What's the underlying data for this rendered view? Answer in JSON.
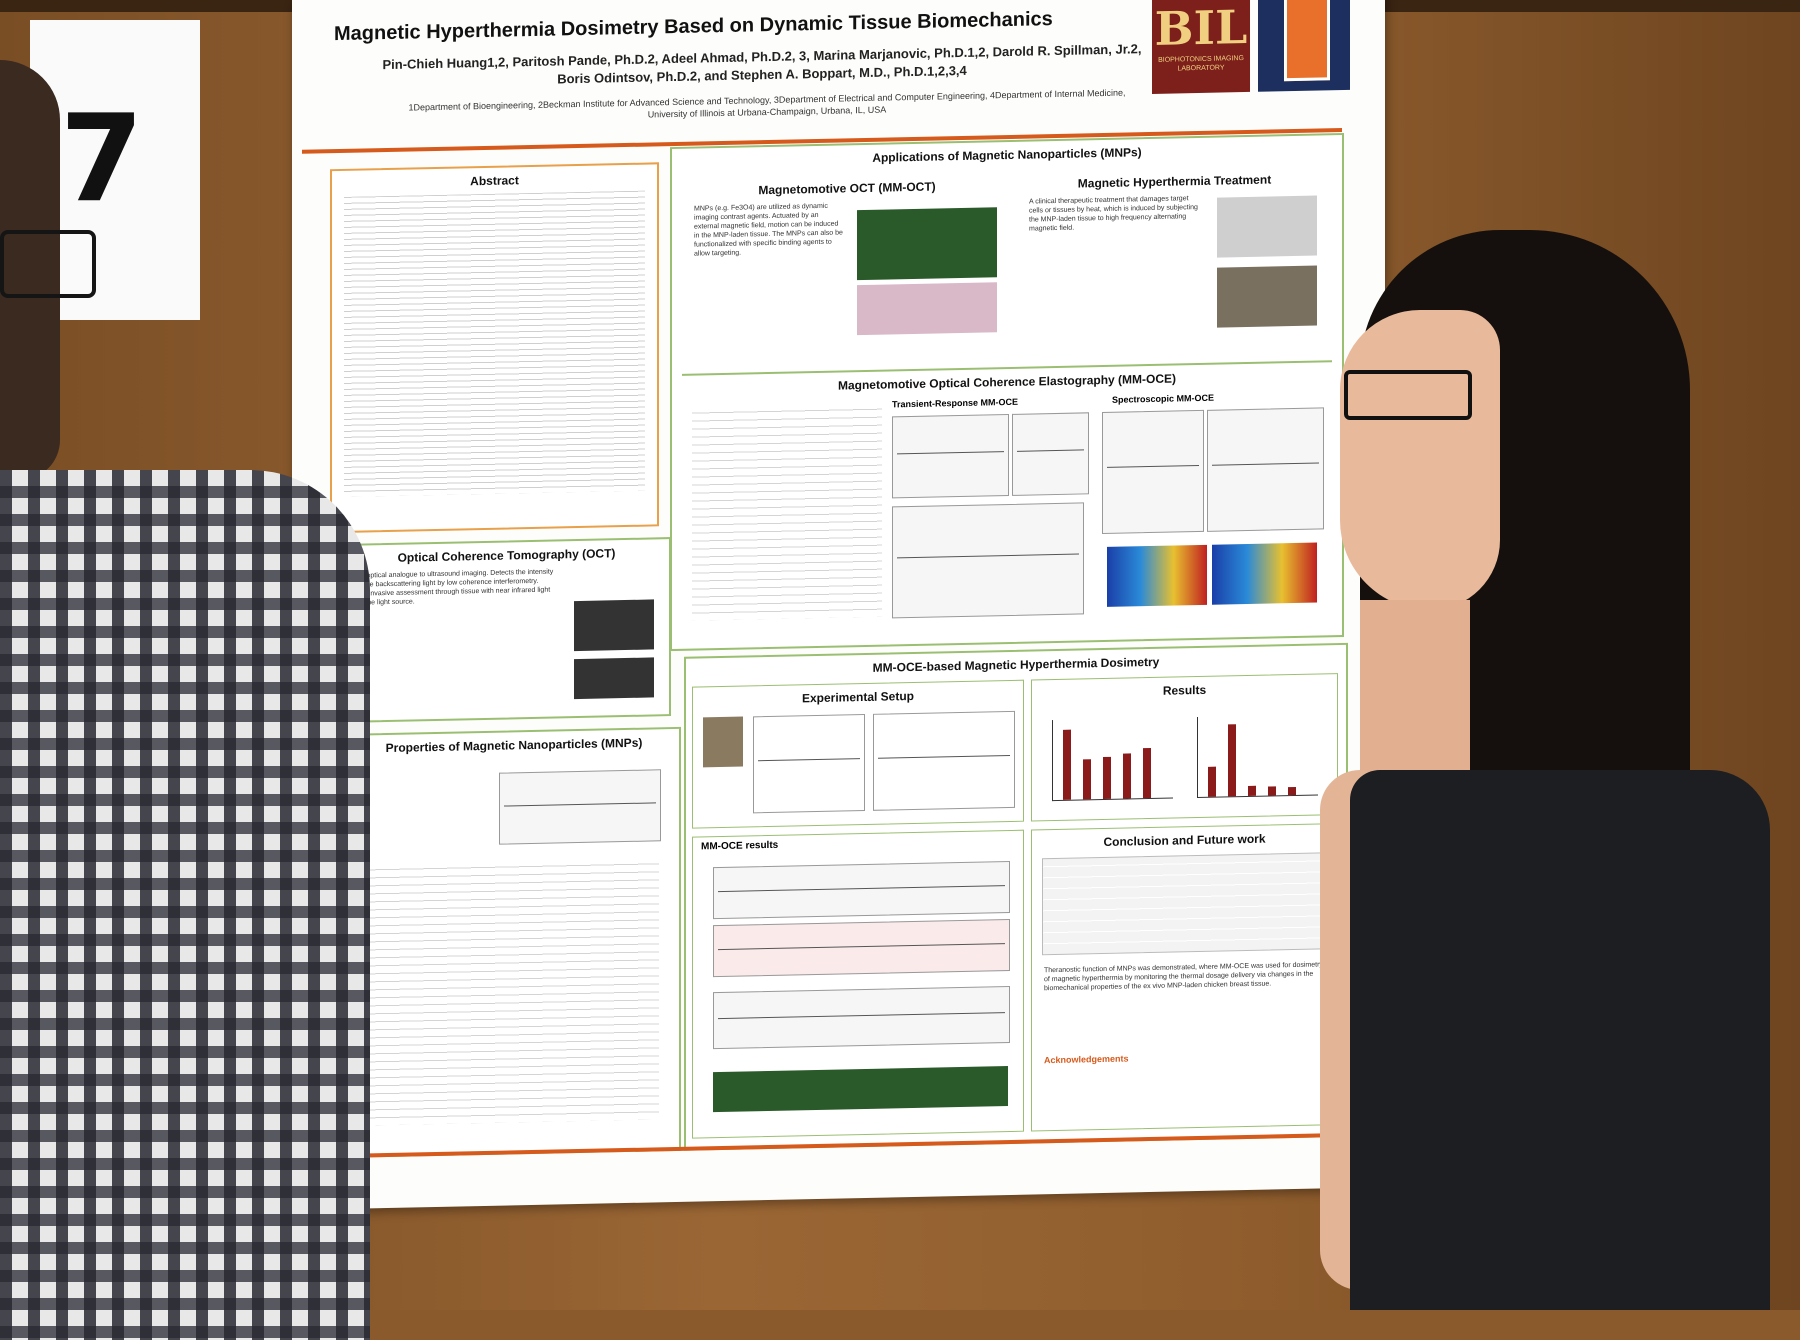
{
  "number_card": {
    "text": "7"
  },
  "poster": {
    "title": "Magnetic Hyperthermia Dosimetry Based on Dynamic Tissue Biomechanics",
    "authors": "Pin-Chieh Huang1,2, Paritosh Pande, Ph.D.2, Adeel Ahmad, Ph.D.2, 3, Marina Marjanovic, Ph.D.1,2, Darold R. Spillman, Jr.2, Boris Odintsov, Ph.D.2, and Stephen A. Boppart, M.D., Ph.D.1,2,3,4",
    "affiliations": "1Department of Bioengineering, 2Beckman Institute for Advanced Science and Technology, 3Department of Electrical and Computer Engineering, 4Department of Internal Medicine, University of Illinois at Urbana-Champaign, Urbana, IL, USA",
    "logo_bil": {
      "big": "BIL",
      "small": "BIOPHOTONICS IMAGING LABORATORY"
    },
    "sections": {
      "abstract": {
        "heading": "Abstract"
      },
      "applications": {
        "heading": "Applications of Magnetic Nanoparticles (MNPs)"
      },
      "mm_oct": {
        "heading": "Magnetomotive OCT (MM-OCT)"
      },
      "hyperthermia": {
        "heading": "Magnetic Hyperthermia Treatment"
      },
      "mm_oce": {
        "heading": "Magnetomotive Optical Coherence Elastography (MM-OCE)"
      },
      "transient": {
        "heading": "Transient-Response MM-OCE"
      },
      "spectroscopic": {
        "heading": "Spectroscopic MM-OCE"
      },
      "oct": {
        "heading": "Optical Coherence Tomography (OCT)"
      },
      "properties": {
        "heading": "Properties of Magnetic Nanoparticles (MNPs)"
      },
      "dosimetry": {
        "heading": "MM-OCE-based Magnetic Hyperthermia Dosimetry"
      },
      "setup": {
        "heading": "Experimental Setup"
      },
      "results": {
        "heading": "Results"
      },
      "mmoce_results": {
        "heading": "MM-OCE results"
      },
      "conclusion": {
        "heading": "Conclusion and Future work"
      },
      "acknowledgements": {
        "heading": "Acknowledgements"
      }
    },
    "bullets": {
      "mm_oct": "MNPs (e.g. Fe3O4) are utilized as dynamic imaging contrast agents. Actuated by an external magnetic field, motion can be induced in the MNP-laden tissue. The MNPs can also be functionalized with specific binding agents to allow targeting.",
      "hyperthermia": "A clinical therapeutic treatment that damages target cells or tissues by heat, which is induced by subjecting the MNP-laden tissue to high frequency alternating magnetic field.",
      "oct": "An optical analogue to ultrasound imaging. Detects the intensity of the backscattering light by low coherence interferometry. Noninvasive assessment through tissue with near infrared light as the light source.",
      "conclusion": "Theranostic function of MNPs was demonstrated, where MM-OCE was used for dosimetry of magnetic hyperthermia by monitoring the thermal dosage delivery via changes in the biomechanical properties of the ex vivo MNP-laden chicken breast tissue."
    }
  }
}
